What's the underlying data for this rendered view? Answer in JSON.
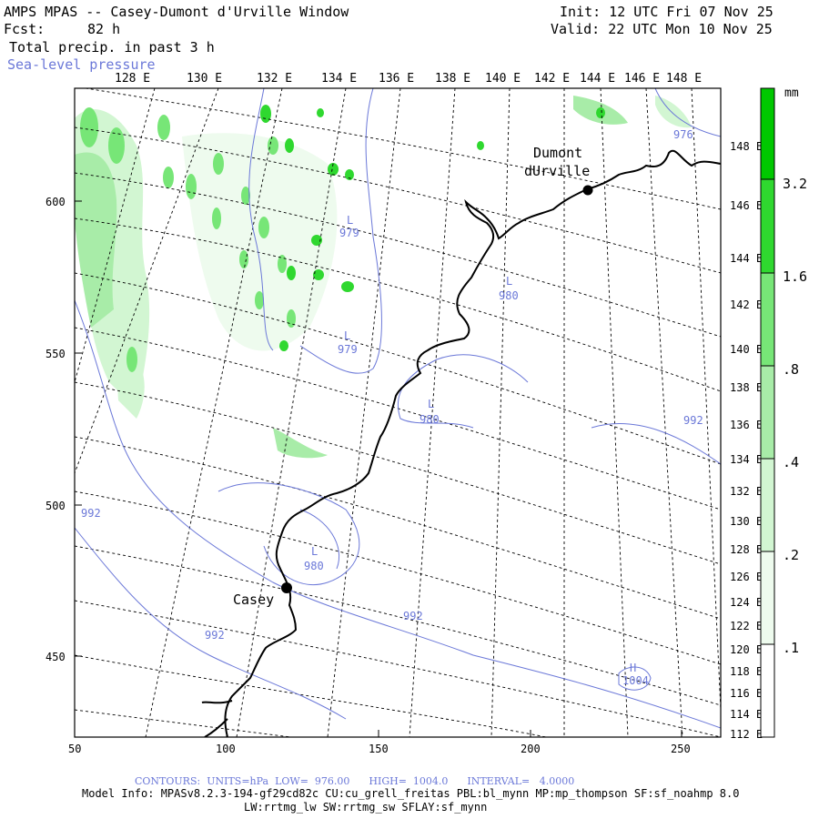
{
  "header": {
    "title": "AMPS MPAS -- Casey-Dumont d'Urville Window",
    "fcst_label": "Fcst:",
    "fcst_value": "82 h",
    "field": "Total precip. in past 3 h",
    "overlay": "Sea-level pressure",
    "init": "Init: 12 UTC Fri 07 Nov 25",
    "valid": "Valid: 22 UTC Mon 10 Nov 25"
  },
  "map": {
    "top_lon_labels": [
      "128 E",
      "130 E",
      "132 E",
      "134 E",
      "136 E",
      "138 E",
      "140 E",
      "142 E",
      "144 E",
      "146 E",
      "148 E"
    ],
    "right_lon_labels": [
      "148 E",
      "146 E",
      "144 E",
      "142 E",
      "140 E",
      "138 E",
      "136 E",
      "134 E",
      "132 E",
      "130 E",
      "128 E",
      "126 E",
      "124 E",
      "122 E",
      "120 E",
      "118 E",
      "116 E",
      "114 E",
      "112 E"
    ],
    "x_ticks": [
      "50",
      "100",
      "150",
      "200",
      "250"
    ],
    "y_ticks": [
      "600",
      "550",
      "500",
      "450"
    ],
    "stations": [
      {
        "id": "dumont",
        "name_line1": "Dumont",
        "name_line2": "dUrville"
      },
      {
        "id": "casey",
        "name_line1": "Casey",
        "name_line2": ""
      }
    ],
    "pressure_labels": [
      {
        "id": "p976",
        "text": "976"
      },
      {
        "id": "L1",
        "text": "L"
      },
      {
        "id": "p979a",
        "text": "979"
      },
      {
        "id": "L2",
        "text": "L"
      },
      {
        "id": "p980a",
        "text": "980"
      },
      {
        "id": "L3",
        "text": "L"
      },
      {
        "id": "p979b",
        "text": "979"
      },
      {
        "id": "L4",
        "text": "L"
      },
      {
        "id": "p980b",
        "text": "980"
      },
      {
        "id": "p992a",
        "text": "992"
      },
      {
        "id": "p992b",
        "text": "992"
      },
      {
        "id": "L5",
        "text": "L"
      },
      {
        "id": "p980c",
        "text": "980"
      },
      {
        "id": "p992c",
        "text": "992"
      },
      {
        "id": "p992d",
        "text": "992"
      },
      {
        "id": "H1",
        "text": "H"
      },
      {
        "id": "p1004",
        "text": "1004"
      }
    ]
  },
  "colorbar": {
    "unit": "mm",
    "labels": [
      "3.2",
      "1.6",
      ".8",
      ".4",
      ".2",
      ".1"
    ],
    "colors": [
      "#00c800",
      "#2fd82f",
      "#77e677",
      "#a8eca8",
      "#d2f6d2",
      "#eefbee"
    ]
  },
  "footer": {
    "contours": "CONTOURS:  UNITS=hPa  LOW=  976.00      HIGH=  1004.0      INTERVAL=   4.0000",
    "model_info": "Model Info: MPASv8.2.3-194-gf29cd82c CU:cu_grell_freitas PBL:bl_mynn MP:mp_thompson SF:sf_noahmp 8.0",
    "physics": "LW:rrtmg_lw SW:rrtmg_sw SFLAY:sf_mynn"
  },
  "colors": {
    "contour": "#6b78d8",
    "coast": "#000000",
    "grid": "#000000"
  }
}
